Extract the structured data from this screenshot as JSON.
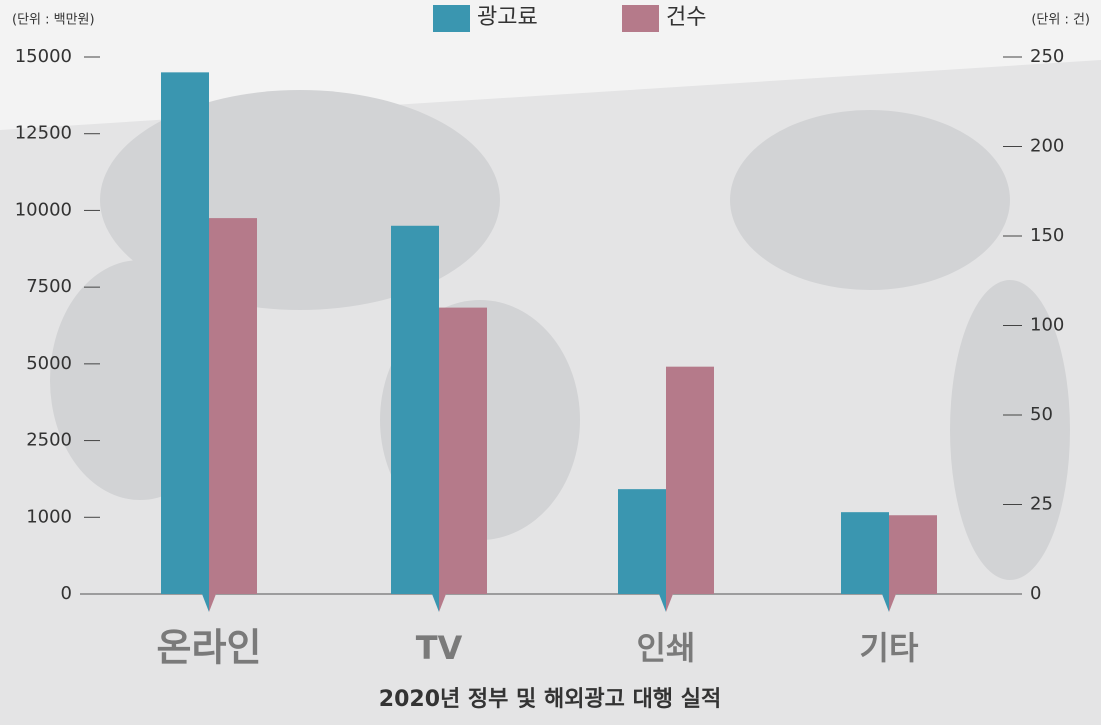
{
  "chart_data": {
    "type": "bar",
    "title": "2020년 정부 및 해외광고 대행 실적",
    "y_unit_label": "(단위 : 백만원)",
    "y2_unit_label": "(단위 : 건)",
    "categories": [
      "온라인",
      "TV",
      "인쇄",
      "기타"
    ],
    "series": [
      {
        "name": "광고료",
        "color": "#3a96b0",
        "values": [
          14500,
          9500,
          1550,
          1100
        ]
      },
      {
        "name": "건수",
        "color": "#b57a8a",
        "axis": "y2",
        "values": [
          160,
          110,
          77,
          22
        ]
      }
    ],
    "ylim": [
      0,
      15000
    ],
    "yticks": [
      0,
      1000,
      2500,
      5000,
      7500,
      10000,
      12500,
      15000
    ],
    "y2lim": [
      0,
      250
    ],
    "y2ticks": [
      0,
      25,
      50,
      100,
      150,
      200,
      250
    ],
    "legend": "top"
  }
}
